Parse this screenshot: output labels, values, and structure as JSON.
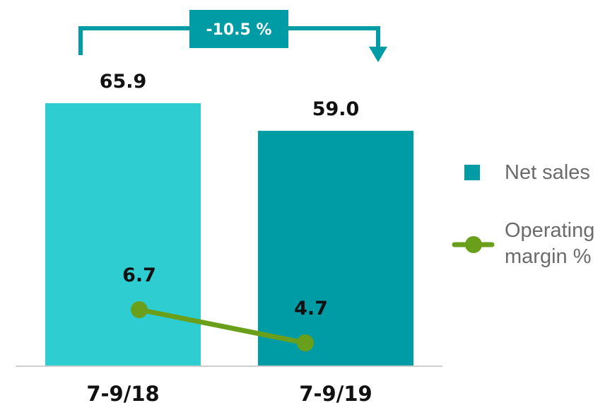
{
  "chart_data": {
    "type": "bar",
    "categories": [
      "7-9/18",
      "7-9/19"
    ],
    "series": [
      {
        "name": "Net sales",
        "type": "bar",
        "values": [
          65.9,
          59.0
        ],
        "colors": [
          "#2ecdd2",
          "#009ca6"
        ]
      },
      {
        "name": "Operating margin %",
        "type": "line",
        "values": [
          6.7,
          4.7
        ],
        "color": "#6a9f1b"
      }
    ],
    "bar_labels": [
      "65.9",
      "59.0"
    ],
    "line_labels": [
      "6.7",
      "4.7"
    ],
    "change_label": "-10.5 %",
    "change_color": "#009ca6",
    "legend": {
      "position": "right",
      "net_sales": "Net sales",
      "operating_line1": "Operating",
      "operating_line2": "margin %"
    }
  }
}
